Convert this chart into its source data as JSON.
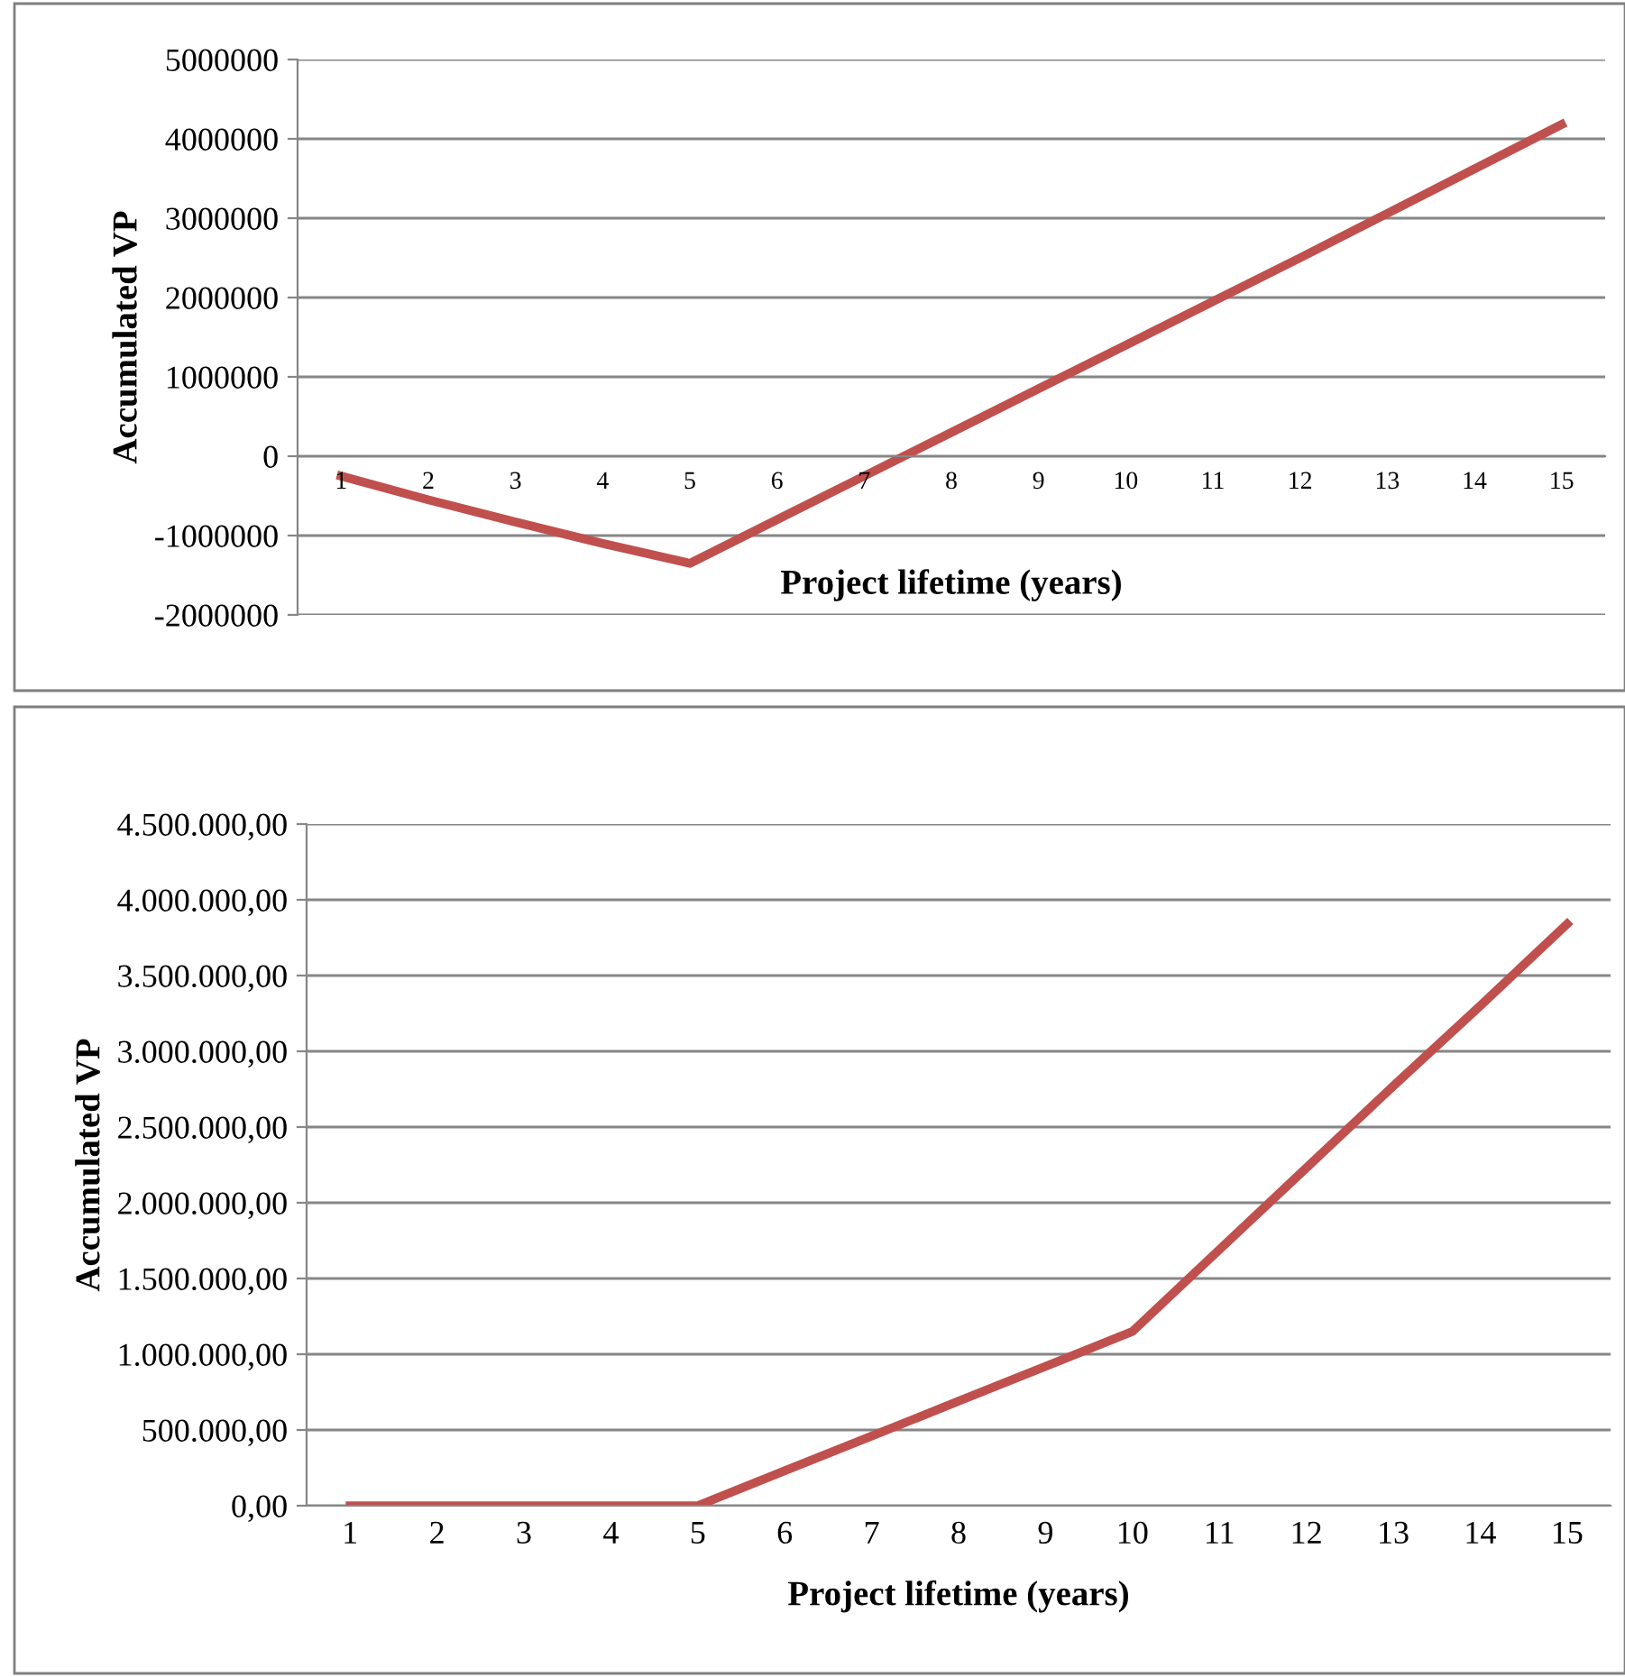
{
  "chart_data": [
    {
      "type": "line",
      "xlabel": "Project lifetime (years)",
      "ylabel": "Accumulated VP",
      "categories": [
        "1",
        "2",
        "3",
        "4",
        "5",
        "6",
        "7",
        "8",
        "9",
        "10",
        "11",
        "12",
        "13",
        "14",
        "15"
      ],
      "series": [
        {
          "color": "#c0504d",
          "values": [
            -250000,
            -550000,
            -830000,
            -1100000,
            -1350000,
            -800000,
            -250000,
            300000,
            850000,
            1400000,
            1950000,
            2500000,
            3060000,
            3620000,
            4180000
          ]
        }
      ],
      "ylim": [
        -2000000,
        5000000
      ],
      "yticks": [
        -2000000,
        -1000000,
        0,
        1000000,
        2000000,
        3000000,
        4000000,
        5000000
      ],
      "grid": "y",
      "legend": false,
      "marker": "none",
      "line_style": "solid"
    },
    {
      "type": "line",
      "xlabel": "Project lifetime (years)",
      "ylabel": "Accumulated VP",
      "categories": [
        "1",
        "2",
        "3",
        "4",
        "5",
        "6",
        "7",
        "8",
        "9",
        "10",
        "11",
        "12",
        "13",
        "14",
        "15"
      ],
      "series": [
        {
          "color": "#c0504d",
          "values": [
            0,
            0,
            0,
            0,
            0,
            230000,
            460000,
            690000,
            920000,
            1150000,
            1690000,
            2230000,
            2770000,
            3300000,
            3840000
          ]
        }
      ],
      "ylim": [
        0,
        4500000
      ],
      "yticks": [
        {
          "value": 0,
          "label": "0,00"
        },
        {
          "value": 500000,
          "label": "500.000,00"
        },
        {
          "value": 1000000,
          "label": "1.000.000,00"
        },
        {
          "value": 1500000,
          "label": "1.500.000,00"
        },
        {
          "value": 2000000,
          "label": "2.000.000,00"
        },
        {
          "value": 2500000,
          "label": "2.500.000,00"
        },
        {
          "value": 3000000,
          "label": "3.000.000,00"
        },
        {
          "value": 3500000,
          "label": "3.500.000,00"
        },
        {
          "value": 4000000,
          "label": "4.000.000,00"
        },
        {
          "value": 4500000,
          "label": "4.500.000,00"
        }
      ],
      "grid": "y",
      "legend": false,
      "marker": "none",
      "line_style": "solid"
    }
  ]
}
